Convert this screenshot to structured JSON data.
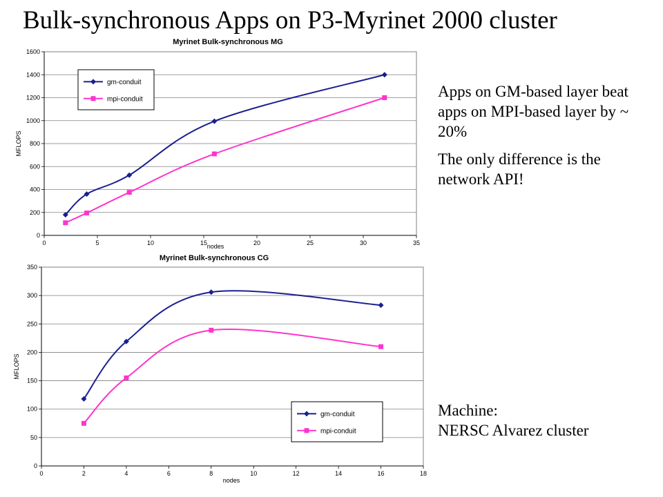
{
  "slide": {
    "title": "Bulk-synchronous  Apps on P3-Myrinet 2000 cluster",
    "notes": [
      "Apps on GM-based layer beat apps on MPI-based layer by ~ 20%",
      "The only difference is the network API!"
    ],
    "machine_label": "Machine:",
    "machine_value": "NERSC Alvarez cluster"
  },
  "colors": {
    "gm": "#1a1f8f",
    "mpi": "#ff33cc",
    "plot_bg": "#ffffff",
    "grid": "#7f7f7f"
  },
  "chart_data": [
    {
      "type": "line",
      "title": "Myrinet Bulk-synchronous MG",
      "xlabel": "nodes",
      "ylabel": "MFLOPS",
      "xlim": [
        0,
        35
      ],
      "ylim": [
        0,
        1600
      ],
      "xticks": [
        0,
        5,
        10,
        15,
        20,
        25,
        30,
        35
      ],
      "yticks": [
        0,
        200,
        400,
        600,
        800,
        1000,
        1200,
        1400,
        1600
      ],
      "grid": true,
      "legend_position": "top-left",
      "series": [
        {
          "name": "gm-conduit",
          "marker": "diamond",
          "x": [
            2,
            4,
            8,
            16,
            32
          ],
          "y": [
            180,
            360,
            525,
            995,
            1400
          ]
        },
        {
          "name": "mpi-conduit",
          "marker": "square",
          "x": [
            2,
            4,
            8,
            16,
            32
          ],
          "y": [
            110,
            195,
            375,
            710,
            1200
          ]
        }
      ]
    },
    {
      "type": "line",
      "title": "Myrinet Bulk-synchronous CG",
      "xlabel": "nodes",
      "ylabel": "MFLOPS",
      "xlim": [
        0,
        18
      ],
      "ylim": [
        0,
        350
      ],
      "xticks": [
        0,
        2,
        4,
        6,
        8,
        10,
        12,
        14,
        16,
        18
      ],
      "yticks": [
        0,
        50,
        100,
        150,
        200,
        250,
        300,
        350
      ],
      "grid": true,
      "legend_position": "bottom-right",
      "series": [
        {
          "name": "gm-conduit",
          "marker": "diamond",
          "x": [
            2,
            4,
            8,
            16
          ],
          "y": [
            118,
            219,
            306,
            283
          ]
        },
        {
          "name": "mpi-conduit",
          "marker": "square",
          "x": [
            2,
            4,
            8,
            16
          ],
          "y": [
            75,
            155,
            239,
            210
          ]
        }
      ]
    }
  ]
}
